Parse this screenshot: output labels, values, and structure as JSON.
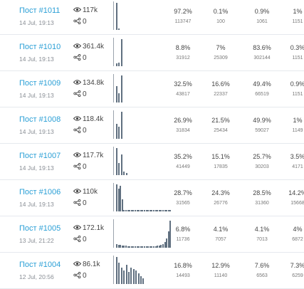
{
  "ui": {
    "accent_color": "#2a9fd6",
    "bar_color": "#607080",
    "view_icon": "eye-icon",
    "share_icon": "share-icon"
  },
  "posts": [
    {
      "title": "Пост #1011",
      "date": "14 Jul, 19:13",
      "views": "117k",
      "shares": "0",
      "stats": [
        {
          "pct": "97.2%",
          "abs": "113747"
        },
        {
          "pct": "0.1%",
          "abs": "100"
        },
        {
          "pct": "0.9%",
          "abs": "1061"
        },
        {
          "pct": "1%",
          "abs": "1151"
        }
      ],
      "spark": [
        {
          "h": 1.0
        },
        {
          "h": 0.06
        }
      ]
    },
    {
      "title": "Пост #1010",
      "date": "14 Jul, 19:13",
      "views": "361.4k",
      "shares": "0",
      "stats": [
        {
          "pct": "8.8%",
          "abs": "31912"
        },
        {
          "pct": "7%",
          "abs": "25309"
        },
        {
          "pct": "83.6%",
          "abs": "302144"
        },
        {
          "pct": "0.3%",
          "abs": "1151"
        }
      ],
      "spark": [
        {
          "h": 0.1
        },
        {
          "h": 0.12
        },
        {
          "h": 1.0
        }
      ]
    },
    {
      "title": "Пост #1009",
      "date": "14 Jul, 19:13",
      "views": "134.8k",
      "shares": "0",
      "stats": [
        {
          "pct": "32.5%",
          "abs": "43817"
        },
        {
          "pct": "16.6%",
          "abs": "22337"
        },
        {
          "pct": "49.4%",
          "abs": "66519"
        },
        {
          "pct": "0.9%",
          "abs": "1151"
        }
      ],
      "spark": [
        {
          "h": 0.6
        },
        {
          "h": 0.35
        },
        {
          "h": 1.0
        }
      ]
    },
    {
      "title": "Пост #1008",
      "date": "14 Jul, 19:13",
      "views": "118.4k",
      "shares": "0",
      "stats": [
        {
          "pct": "26.9%",
          "abs": "31834"
        },
        {
          "pct": "21.5%",
          "abs": "25434"
        },
        {
          "pct": "49.9%",
          "abs": "59027"
        },
        {
          "pct": "1%",
          "abs": "1149"
        }
      ],
      "spark": [
        {
          "h": 0.55
        },
        {
          "h": 0.45
        },
        {
          "h": 1.0
        }
      ]
    },
    {
      "title": "Пост #1007",
      "date": "14 Jul, 19:13",
      "views": "117.7k",
      "shares": "0",
      "stats": [
        {
          "pct": "35.2%",
          "abs": "41449"
        },
        {
          "pct": "15.1%",
          "abs": "17835"
        },
        {
          "pct": "25.7%",
          "abs": "30203"
        },
        {
          "pct": "3.5%",
          "abs": "4171"
        }
      ],
      "spark": [
        {
          "h": 1.0
        },
        {
          "h": 0.45
        },
        {
          "h": 0.75
        },
        {
          "h": 0.12
        },
        {
          "h": 0.08
        }
      ]
    },
    {
      "title": "Пост #1006",
      "date": "14 Jul, 19:13",
      "views": "110k",
      "shares": "0",
      "stats": [
        {
          "pct": "28.7%",
          "abs": "31565"
        },
        {
          "pct": "24.3%",
          "abs": "26776"
        },
        {
          "pct": "28.5%",
          "abs": "31360"
        },
        {
          "pct": "14.2%",
          "abs": "15668"
        }
      ],
      "spark": [
        {
          "h": 1.0
        },
        {
          "h": 0.85
        },
        {
          "h": 0.95
        },
        {
          "h": 0.45
        },
        {
          "h": 0.06
        },
        {
          "h": 0.06
        },
        {
          "h": 0.06
        },
        {
          "h": 0.06
        },
        {
          "h": 0.06
        },
        {
          "h": 0.06
        },
        {
          "h": 0.06
        },
        {
          "h": 0.06
        },
        {
          "h": 0.06
        },
        {
          "h": 0.06
        },
        {
          "h": 0.06
        },
        {
          "h": 0.06
        },
        {
          "h": 0.06
        },
        {
          "h": 0.06
        },
        {
          "h": 0.06
        },
        {
          "h": 0.06
        },
        {
          "h": 0.06
        },
        {
          "h": 0.06
        },
        {
          "h": 0.06
        },
        {
          "h": 0.06
        },
        {
          "h": 0.06
        },
        {
          "h": 0.06
        },
        {
          "h": 0.06
        },
        {
          "h": 0.06
        },
        {
          "h": 0.06
        },
        {
          "h": 0.06
        }
      ]
    },
    {
      "title": "Пост #1005",
      "date": "13 Jul, 21:22",
      "views": "172.1k",
      "shares": "0",
      "stats": [
        {
          "pct": "6.8%",
          "abs": "11736"
        },
        {
          "pct": "4.1%",
          "abs": "7057"
        },
        {
          "pct": "4.1%",
          "abs": "7013"
        },
        {
          "pct": "4%",
          "abs": "6872"
        }
      ],
      "spark": [
        {
          "h": 0.12
        },
        {
          "h": 0.1
        },
        {
          "h": 0.1
        },
        {
          "h": 0.08
        },
        {
          "h": 0.08
        },
        {
          "h": 0.07
        },
        {
          "h": 0.06
        },
        {
          "h": 0.06
        },
        {
          "h": 0.06
        },
        {
          "h": 0.06
        },
        {
          "h": 0.06
        },
        {
          "h": 0.06
        },
        {
          "h": 0.06
        },
        {
          "h": 0.06
        },
        {
          "h": 0.06
        },
        {
          "h": 0.06
        },
        {
          "h": 0.06
        },
        {
          "h": 0.06
        },
        {
          "h": 0.06
        },
        {
          "h": 0.06
        },
        {
          "h": 0.06
        },
        {
          "h": 0.06
        },
        {
          "h": 0.07
        },
        {
          "h": 0.08
        },
        {
          "h": 0.1
        },
        {
          "h": 0.12
        },
        {
          "h": 0.2
        },
        {
          "h": 0.35
        },
        {
          "h": 0.6
        },
        {
          "h": 1.0
        }
      ]
    },
    {
      "title": "Пост #1004",
      "date": "12 Jul, 20:56",
      "views": "86.1k",
      "shares": "0",
      "stats": [
        {
          "pct": "16.8%",
          "abs": "14493"
        },
        {
          "pct": "12.9%",
          "abs": "11140"
        },
        {
          "pct": "7.6%",
          "abs": "6563"
        },
        {
          "pct": "7.3%",
          "abs": "6259"
        }
      ],
      "spark": [
        {
          "h": 1.0
        },
        {
          "h": 0.8
        },
        {
          "h": 0.6
        },
        {
          "h": 0.5
        },
        {
          "h": 0.7
        },
        {
          "h": 0.45
        },
        {
          "h": 0.6
        },
        {
          "h": 0.55
        },
        {
          "h": 0.5
        },
        {
          "h": 0.4
        },
        {
          "h": 0.3
        },
        {
          "h": 0.2
        }
      ]
    }
  ]
}
